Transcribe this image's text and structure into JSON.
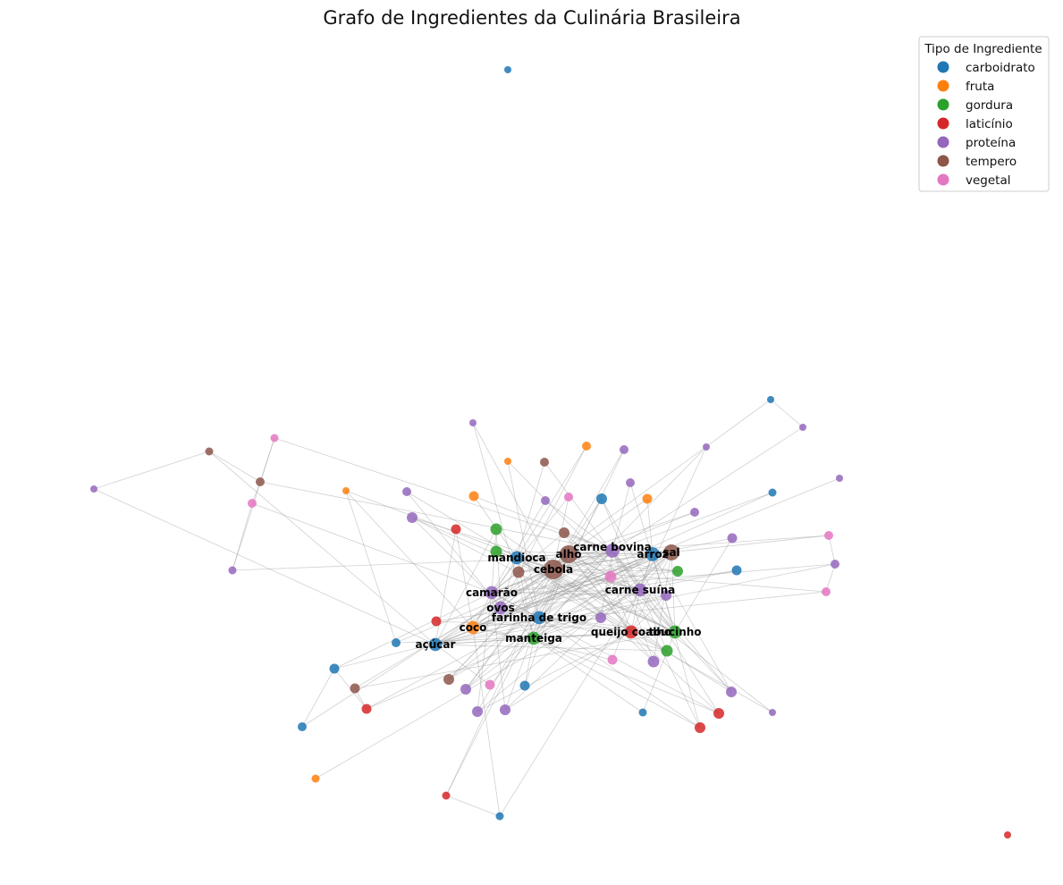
{
  "chart_data": {
    "type": "network",
    "title": "Grafo de Ingredientes da Culinária Brasileira",
    "legend": {
      "title": "Tipo de Ingrediente",
      "placement": "top-right",
      "entries": [
        {
          "label": "carboidrato",
          "color": "#1f77b4"
        },
        {
          "label": "fruta",
          "color": "#ff7f0e"
        },
        {
          "label": "gordura",
          "color": "#2ca02c"
        },
        {
          "label": "laticínio",
          "color": "#d62728"
        },
        {
          "label": "proteína",
          "color": "#9467bd"
        },
        {
          "label": "tempero",
          "color": "#8c564b"
        },
        {
          "label": "vegetal",
          "color": "#e377c2"
        }
      ]
    },
    "grid": false,
    "axes": "off",
    "labeled_nodes": [
      {
        "label": "cebola",
        "type": "tempero",
        "degree": 30
      },
      {
        "label": "alho",
        "type": "tempero",
        "degree": 26
      },
      {
        "label": "sal",
        "type": "tempero",
        "degree": 22
      },
      {
        "label": "carne bovina",
        "type": "proteína",
        "degree": 18
      },
      {
        "label": "arroz",
        "type": "carboidrato",
        "degree": 18
      },
      {
        "label": "mandioca",
        "type": "carboidrato",
        "degree": 16
      },
      {
        "label": "camarão",
        "type": "proteína",
        "degree": 16
      },
      {
        "label": "carne suína",
        "type": "proteína",
        "degree": 16
      },
      {
        "label": "ovos",
        "type": "proteína",
        "degree": 16
      },
      {
        "label": "farinha de trigo",
        "type": "carboidrato",
        "degree": 16
      },
      {
        "label": "coco",
        "type": "fruta",
        "degree": 16
      },
      {
        "label": "açúcar",
        "type": "carboidrato",
        "degree": 16
      },
      {
        "label": "manteiga",
        "type": "gordura",
        "degree": 16
      },
      {
        "label": "queijo coalho",
        "type": "laticínio",
        "degree": 16
      },
      {
        "label": "toucinho",
        "type": "gordura",
        "degree": 16
      }
    ]
  }
}
